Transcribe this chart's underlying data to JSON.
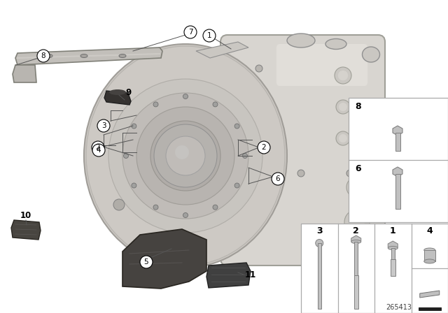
{
  "bg_color": "#ffffff",
  "part_number": "265413",
  "trans_body_color": "#d0cdc8",
  "trans_body_edge": "#909088",
  "trans_dark": "#b0ada8",
  "bell_color": "#c8c5c0",
  "bracket_color": "#c0bdb8",
  "bracket_edge": "#707070",
  "dark_part_color": "#404040",
  "dark_part_edge": "#202020",
  "panel_border": "#aaaaaa",
  "bolt_color": "#b8b8b8",
  "bolt_edge": "#707070",
  "label_circle_fc": "#ffffff",
  "label_circle_ec": "#000000",
  "leader_color": "#555555",
  "leader_lw": 0.7
}
